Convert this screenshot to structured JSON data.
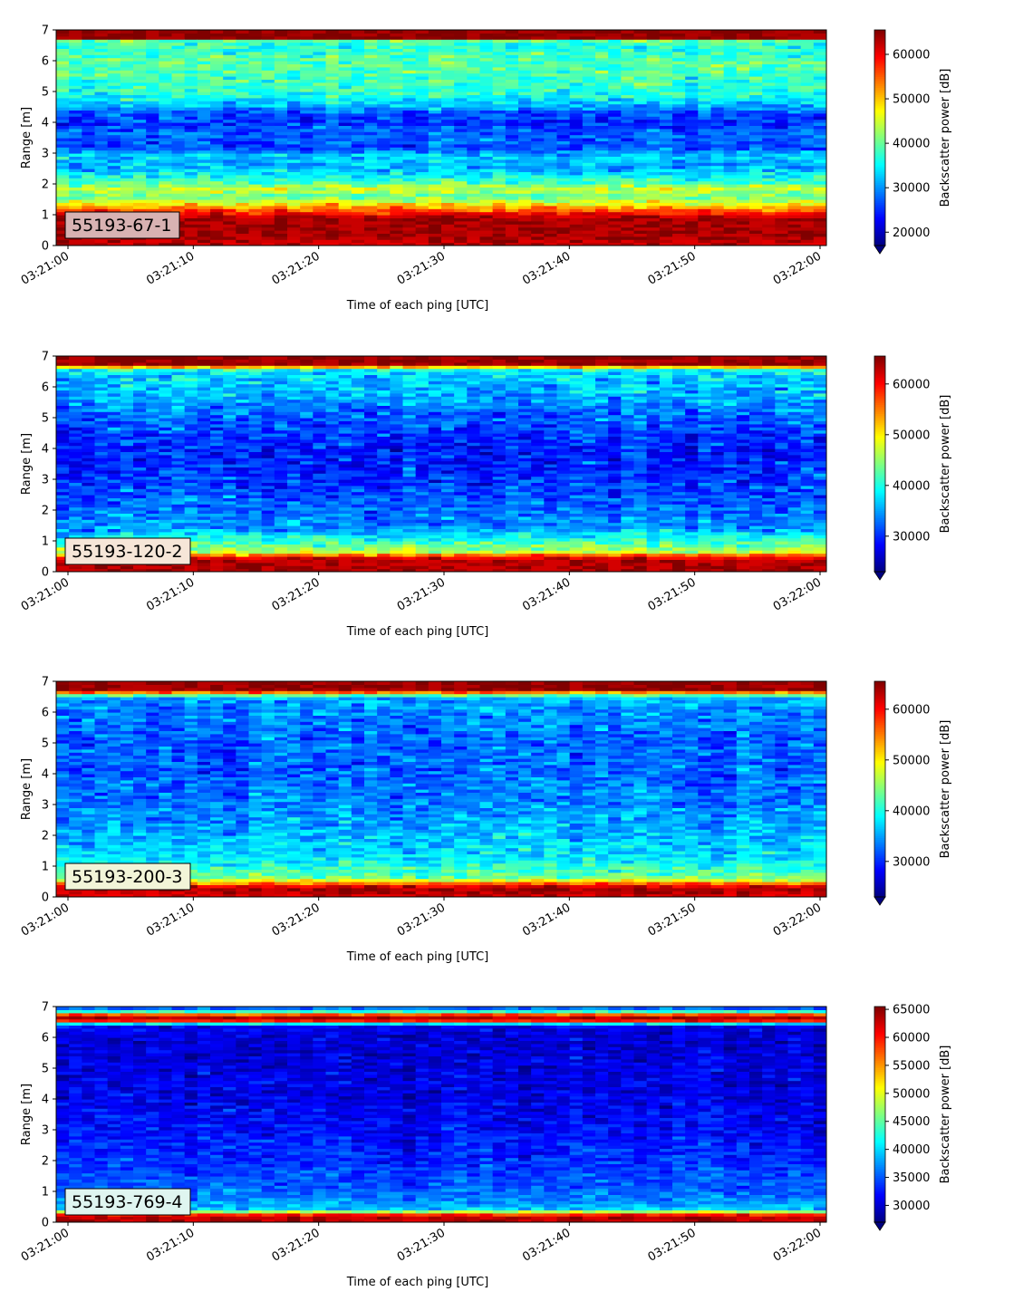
{
  "figure": {
    "colormap": "jet",
    "xlabel": "Time of each ping [UTC]",
    "ylabel": "Range [m]",
    "colorbar_label": "Backscatter power [dB]"
  },
  "chart_data": [
    {
      "type": "heatmap",
      "label": "55193-67-1",
      "label_box_color": "#d8b2b2",
      "xlabel": "Time of each ping [UTC]",
      "ylabel": "Range [m]",
      "x_range": [
        "03:21:00",
        "03:22:00"
      ],
      "x_ticks": [
        "03:21:00",
        "03:21:10",
        "03:21:20",
        "03:21:30",
        "03:21:40",
        "03:21:50",
        "03:22:00"
      ],
      "ylim": [
        0,
        7
      ],
      "y_ticks": [
        0,
        1,
        2,
        3,
        4,
        5,
        6,
        7
      ],
      "colorbar": {
        "label": "Backscatter power [dB]",
        "range": [
          17000,
          65500
        ],
        "ticks": [
          20000,
          30000,
          40000,
          50000,
          60000
        ]
      },
      "n_pings": 60,
      "range_bins": 70,
      "profile": [
        [
          0.1,
          62000
        ],
        [
          0.3,
          63500
        ],
        [
          0.9,
          63500
        ],
        [
          1.1,
          58000
        ],
        [
          1.3,
          50000
        ],
        [
          1.6,
          39500
        ],
        [
          1.85,
          45000
        ],
        [
          2.05,
          39000
        ],
        [
          2.3,
          35000
        ],
        [
          2.6,
          31000
        ],
        [
          2.9,
          33500
        ],
        [
          3.2,
          26000
        ],
        [
          3.6,
          28000
        ],
        [
          4.0,
          25000
        ],
        [
          4.3,
          26500
        ],
        [
          4.6,
          33000
        ],
        [
          5.0,
          37000
        ],
        [
          5.5,
          38500
        ],
        [
          6.0,
          39500
        ],
        [
          6.5,
          36500
        ],
        [
          6.65,
          40000
        ],
        [
          6.75,
          64500
        ],
        [
          7.0,
          64500
        ]
      ],
      "noise": 4500
    },
    {
      "type": "heatmap",
      "label": "55193-120-2",
      "label_box_color": "#f6e6d8",
      "xlabel": "Time of each ping [UTC]",
      "ylabel": "Range [m]",
      "x_range": [
        "03:21:00",
        "03:22:00"
      ],
      "x_ticks": [
        "03:21:00",
        "03:21:10",
        "03:21:20",
        "03:21:30",
        "03:21:40",
        "03:21:50",
        "03:22:00"
      ],
      "ylim": [
        0,
        7
      ],
      "y_ticks": [
        0,
        1,
        2,
        3,
        4,
        5,
        6,
        7
      ],
      "colorbar": {
        "label": "Backscatter power [dB]",
        "range": [
          23000,
          65500
        ],
        "ticks": [
          30000,
          40000,
          50000,
          60000
        ]
      },
      "n_pings": 60,
      "range_bins": 70,
      "profile": [
        [
          0.1,
          63500
        ],
        [
          0.35,
          63500
        ],
        [
          0.5,
          60000
        ],
        [
          0.65,
          47000
        ],
        [
          0.9,
          43000
        ],
        [
          1.1,
          40000
        ],
        [
          1.4,
          35000
        ],
        [
          2.0,
          33000
        ],
        [
          3.0,
          30500
        ],
        [
          4.0,
          29500
        ],
        [
          5.0,
          32500
        ],
        [
          5.8,
          36000
        ],
        [
          6.4,
          37500
        ],
        [
          6.6,
          40000
        ],
        [
          6.7,
          64500
        ],
        [
          7.0,
          64500
        ]
      ],
      "noise": 4200
    },
    {
      "type": "heatmap",
      "label": "55193-200-3",
      "label_box_color": "#f2f5d8",
      "xlabel": "Time of each ping [UTC]",
      "ylabel": "Range [m]",
      "x_range": [
        "03:21:00",
        "03:22:00"
      ],
      "x_ticks": [
        "03:21:00",
        "03:21:10",
        "03:21:20",
        "03:21:30",
        "03:21:40",
        "03:21:50",
        "03:22:00"
      ],
      "ylim": [
        0,
        7
      ],
      "y_ticks": [
        0,
        1,
        2,
        3,
        4,
        5,
        6,
        7
      ],
      "colorbar": {
        "label": "Backscatter power [dB]",
        "range": [
          23000,
          65500
        ],
        "ticks": [
          30000,
          40000,
          50000,
          60000
        ]
      },
      "n_pings": 60,
      "range_bins": 70,
      "profile": [
        [
          0.05,
          62000
        ],
        [
          0.3,
          63500
        ],
        [
          0.45,
          56000
        ],
        [
          0.6,
          44000
        ],
        [
          0.9,
          41000
        ],
        [
          1.3,
          38000
        ],
        [
          2.0,
          36000
        ],
        [
          3.0,
          34000
        ],
        [
          4.0,
          32500
        ],
        [
          5.0,
          32500
        ],
        [
          6.0,
          34000
        ],
        [
          6.5,
          36000
        ],
        [
          6.6,
          50000
        ],
        [
          6.75,
          64500
        ],
        [
          7.0,
          64500
        ]
      ],
      "noise": 4000
    },
    {
      "type": "heatmap",
      "label": "55193-769-4",
      "label_box_color": "#dff5f0",
      "xlabel": "Time of each ping [UTC]",
      "ylabel": "Range [m]",
      "x_range": [
        "03:21:00",
        "03:22:00"
      ],
      "x_ticks": [
        "03:21:00",
        "03:21:10",
        "03:21:20",
        "03:21:30",
        "03:21:40",
        "03:21:50",
        "03:22:00"
      ],
      "ylim": [
        0,
        7
      ],
      "y_ticks": [
        0,
        1,
        2,
        3,
        4,
        5,
        6,
        7
      ],
      "colorbar": {
        "label": "Backscatter power [dB]",
        "range": [
          27000,
          65500
        ],
        "ticks": [
          30000,
          35000,
          40000,
          45000,
          50000,
          55000,
          60000,
          65000
        ]
      },
      "n_pings": 60,
      "range_bins": 70,
      "profile": [
        [
          0.05,
          63000
        ],
        [
          0.2,
          63500
        ],
        [
          0.3,
          56000
        ],
        [
          0.4,
          40000
        ],
        [
          0.7,
          37000
        ],
        [
          1.2,
          35000
        ],
        [
          2.0,
          33500
        ],
        [
          3.0,
          32000
        ],
        [
          4.0,
          31000
        ],
        [
          5.0,
          30500
        ],
        [
          6.0,
          30000
        ],
        [
          6.4,
          31000
        ],
        [
          6.55,
          60000
        ],
        [
          6.7,
          64500
        ],
        [
          6.8,
          50000
        ],
        [
          6.9,
          36000
        ],
        [
          7.0,
          36000
        ]
      ],
      "noise": 2800
    }
  ]
}
